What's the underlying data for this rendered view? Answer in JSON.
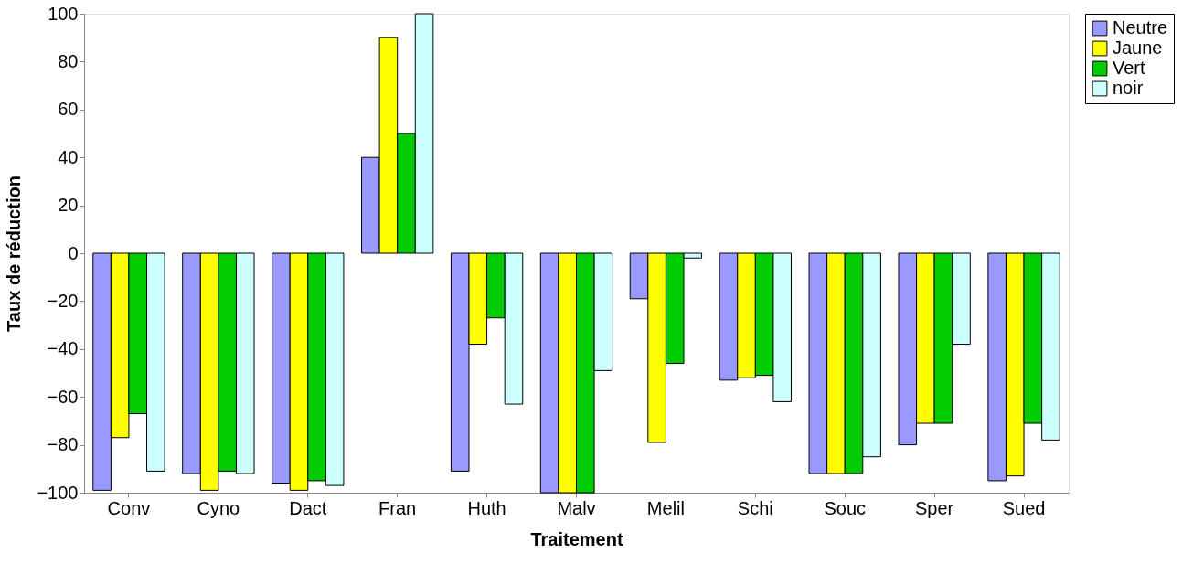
{
  "chart_data": {
    "type": "bar",
    "xlabel": "Traitement",
    "ylabel": "Taux de réduction",
    "categories": [
      "Conv",
      "Cyno",
      "Dact",
      "Fran",
      "Huth",
      "Malv",
      "Melil",
      "Schi",
      "Souc",
      "Sper",
      "Sued"
    ],
    "series": [
      {
        "name": "Neutre",
        "color": "#9999ff",
        "values": [
          -99,
          -92,
          -96,
          40,
          -91,
          -100,
          -19,
          -53,
          -92,
          -80,
          -95
        ]
      },
      {
        "name": "Jaune",
        "color": "#ffff00",
        "values": [
          -77,
          -99,
          -99,
          90,
          -38,
          -100,
          -79,
          -52,
          -92,
          -71,
          -93
        ]
      },
      {
        "name": "Vert",
        "color": "#00cc00",
        "values": [
          -67,
          -91,
          -95,
          50,
          -27,
          -100,
          -46,
          -51,
          -92,
          -71,
          -71
        ]
      },
      {
        "name": "noir",
        "color": "#ccffff",
        "values": [
          -91,
          -92,
          -97,
          100,
          -63,
          -49,
          -2,
          -62,
          -85,
          -38,
          -78
        ]
      }
    ],
    "ylim": [
      -100,
      100
    ],
    "yticks": [
      -100,
      -80,
      -60,
      -40,
      -20,
      0,
      20,
      40,
      60,
      80,
      100
    ],
    "grid": false,
    "legend": "right"
  }
}
